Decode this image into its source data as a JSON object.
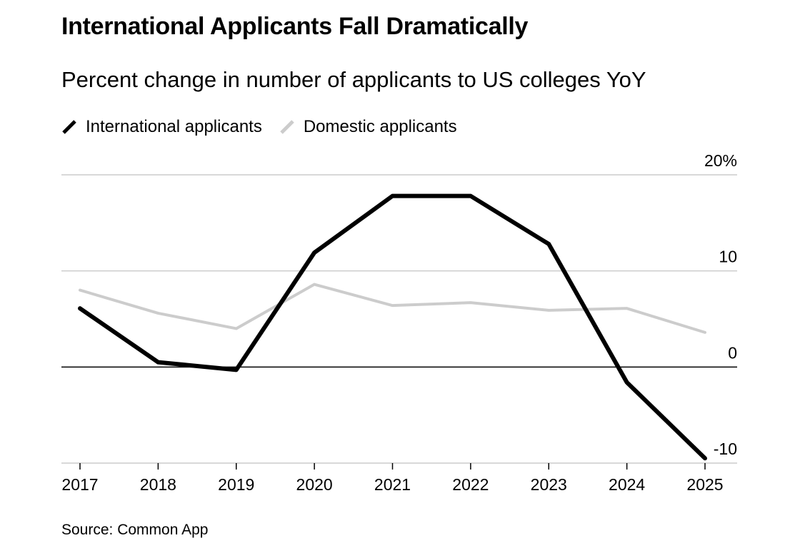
{
  "title": "International Applicants Fall Dramatically",
  "subtitle": "Percent change in number of applicants to US colleges YoY",
  "source": "Source: Common App",
  "colors": {
    "international": "#000000",
    "domestic": "#cccccc",
    "gridline": "#cccccc",
    "zeroline": "#000000"
  },
  "chart_data": {
    "type": "line",
    "title": "International Applicants Fall Dramatically",
    "subtitle": "Percent change in number of applicants to US colleges YoY",
    "x": [
      "2017",
      "2018",
      "2019",
      "2020",
      "2021",
      "2022",
      "2023",
      "2024",
      "2025"
    ],
    "series": [
      {
        "name": "International applicants",
        "color": "#000000",
        "values": [
          6.1,
          0.5,
          -0.3,
          11.9,
          17.8,
          17.8,
          12.8,
          -1.6,
          -9.5
        ]
      },
      {
        "name": "Domestic applicants",
        "color": "#cccccc",
        "values": [
          8.0,
          5.6,
          4.0,
          8.6,
          6.4,
          6.7,
          5.9,
          6.1,
          3.6
        ]
      }
    ],
    "ylim": [
      -10,
      20
    ],
    "yticks": [
      20,
      10,
      0,
      -10
    ],
    "ytick_labels": [
      "20%",
      "10",
      "0",
      "-10"
    ],
    "grid": true,
    "legend_position": "top-left",
    "y_axis_side": "right"
  }
}
